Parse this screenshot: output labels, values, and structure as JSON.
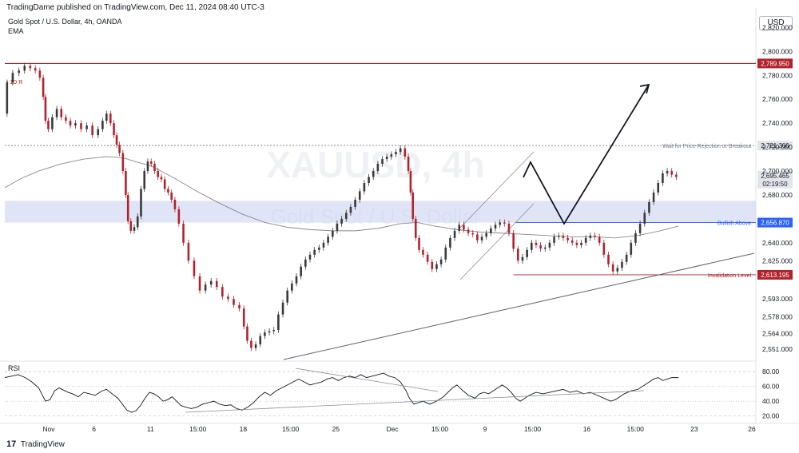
{
  "header": {
    "published": "TradingDame published on TradingView.com, Dec 11, 2024 08:40 UTC-3",
    "symbol": "Gold Spot / U.S. Dollar, 4h, OANDA",
    "indicator": "EMA",
    "currency": "USD",
    "watermark_ticker": "XAUUSD, 4h",
    "watermark_name": "Gold Spot / U.S. Dollar",
    "high_marker": "• 1D R"
  },
  "footer": {
    "brand": "TradingView",
    "brand_mark": "17"
  },
  "colors": {
    "up": "#3a3a3a",
    "down": "#b2222c",
    "resistance": "#b2222c",
    "bullish": "#2962ff",
    "zone": "#c5cff0",
    "ema": "#888888"
  },
  "chart_data": [
    {
      "type": "line",
      "panel": "price",
      "ylim": [
        2541,
        2835
      ],
      "price_ticks": [
        "2,820.000",
        "2,800.000",
        "2,780.000",
        "2,760.000",
        "2,740.000",
        "2,720.000",
        "2,700.000",
        "2,680.000",
        "2,640.000",
        "2,625.000",
        "2,593.000",
        "2,578.000",
        "2,564.000",
        "2,551.000"
      ],
      "price_tick_values": [
        2820,
        2800,
        2780,
        2760,
        2740,
        2720,
        2700,
        2680,
        2640,
        2625,
        2593,
        2578,
        2564,
        2551
      ],
      "x_labels": [
        "Nov",
        "6",
        "11",
        "15:00",
        "18",
        "15:00",
        "25",
        "Dec",
        "15:00",
        "9",
        "15:00",
        "16",
        "15:00",
        "23",
        "26"
      ],
      "x_positions": [
        0,
        40,
        90,
        132,
        172,
        214,
        254,
        304,
        346,
        386,
        428,
        476,
        519,
        571,
        622
      ],
      "levels": [
        {
          "name": "resistance",
          "value": 2789.95,
          "label": "2,789.950",
          "note": ""
        },
        {
          "name": "wait",
          "value": 2721.3,
          "label": "2,721.300",
          "note": "Wait for Price Rejection or Breakout"
        },
        {
          "name": "bullish",
          "value": 2656.87,
          "label": "2,656.870",
          "note": "Bullish Above"
        },
        {
          "name": "invalidation",
          "value": 2613.195,
          "label": "2,613.195",
          "note": "Invalidation Level"
        }
      ],
      "current_price": {
        "value": 2695.465,
        "label": "2,695.465",
        "countdown": "02:19:50"
      },
      "zone": [
        2656.87,
        2675
      ],
      "price_path": [
        [
          0,
          2748
        ],
        [
          4,
          2774
        ],
        [
          10,
          2782
        ],
        [
          15,
          2784
        ],
        [
          20,
          2788
        ],
        [
          25,
          2786
        ],
        [
          29,
          2784
        ],
        [
          33,
          2778
        ],
        [
          35,
          2762
        ],
        [
          37,
          2742
        ],
        [
          40,
          2735
        ],
        [
          44,
          2745
        ],
        [
          48,
          2752
        ],
        [
          52,
          2745
        ],
        [
          56,
          2742
        ],
        [
          60,
          2738
        ],
        [
          65,
          2740
        ],
        [
          70,
          2735
        ],
        [
          75,
          2738
        ],
        [
          80,
          2730
        ],
        [
          85,
          2735
        ],
        [
          88,
          2742
        ],
        [
          92,
          2748
        ],
        [
          95,
          2740
        ],
        [
          98,
          2730
        ],
        [
          100,
          2722
        ],
        [
          103,
          2715
        ],
        [
          106,
          2700
        ],
        [
          108,
          2680
        ],
        [
          110,
          2658
        ],
        [
          113,
          2650
        ],
        [
          116,
          2653
        ],
        [
          119,
          2662
        ],
        [
          122,
          2685
        ],
        [
          125,
          2700
        ],
        [
          128,
          2708
        ],
        [
          131,
          2706
        ],
        [
          134,
          2700
        ],
        [
          137,
          2695
        ],
        [
          140,
          2693
        ],
        [
          143,
          2685
        ],
        [
          146,
          2682
        ],
        [
          149,
          2676
        ],
        [
          152,
          2668
        ],
        [
          156,
          2656
        ],
        [
          160,
          2640
        ],
        [
          165,
          2625
        ],
        [
          170,
          2612
        ],
        [
          175,
          2600
        ],
        [
          180,
          2605
        ],
        [
          185,
          2608
        ],
        [
          190,
          2603
        ],
        [
          195,
          2595
        ],
        [
          200,
          2593
        ],
        [
          205,
          2588
        ],
        [
          210,
          2585
        ],
        [
          213,
          2570
        ],
        [
          216,
          2558
        ],
        [
          220,
          2552
        ],
        [
          224,
          2555
        ],
        [
          228,
          2562
        ],
        [
          232,
          2565
        ],
        [
          236,
          2566
        ],
        [
          240,
          2567
        ],
        [
          244,
          2580
        ],
        [
          248,
          2590
        ],
        [
          252,
          2600
        ],
        [
          256,
          2606
        ],
        [
          260,
          2612
        ],
        [
          264,
          2620
        ],
        [
          268,
          2626
        ],
        [
          272,
          2630
        ],
        [
          276,
          2634
        ],
        [
          280,
          2636
        ],
        [
          284,
          2640
        ],
        [
          288,
          2645
        ],
        [
          292,
          2650
        ],
        [
          296,
          2656
        ],
        [
          300,
          2660
        ],
        [
          304,
          2665
        ],
        [
          308,
          2670
        ],
        [
          312,
          2676
        ],
        [
          316,
          2683
        ],
        [
          320,
          2690
        ],
        [
          324,
          2695
        ],
        [
          328,
          2700
        ],
        [
          332,
          2706
        ],
        [
          336,
          2710
        ],
        [
          340,
          2712
        ],
        [
          344,
          2714
        ],
        [
          348,
          2716
        ],
        [
          352,
          2719
        ],
        [
          356,
          2712
        ],
        [
          358,
          2700
        ],
        [
          360,
          2682
        ],
        [
          362,
          2660
        ],
        [
          365,
          2644
        ],
        [
          368,
          2634
        ],
        [
          372,
          2630
        ],
        [
          376,
          2624
        ],
        [
          380,
          2618
        ],
        [
          384,
          2622
        ],
        [
          388,
          2626
        ],
        [
          392,
          2636
        ],
        [
          396,
          2644
        ],
        [
          400,
          2650
        ],
        [
          404,
          2655
        ],
        [
          408,
          2651
        ],
        [
          412,
          2648
        ],
        [
          416,
          2647
        ],
        [
          420,
          2642
        ],
        [
          424,
          2645
        ],
        [
          428,
          2648
        ],
        [
          432,
          2652
        ],
        [
          436,
          2655
        ],
        [
          440,
          2657
        ],
        [
          444,
          2656
        ],
        [
          448,
          2648
        ],
        [
          452,
          2635
        ],
        [
          456,
          2625
        ],
        [
          460,
          2628
        ],
        [
          464,
          2634
        ],
        [
          468,
          2640
        ],
        [
          472,
          2638
        ],
        [
          476,
          2635
        ],
        [
          480,
          2636
        ],
        [
          484,
          2640
        ],
        [
          488,
          2645
        ],
        [
          492,
          2646
        ],
        [
          496,
          2644
        ],
        [
          500,
          2642
        ],
        [
          504,
          2640
        ],
        [
          508,
          2638
        ],
        [
          512,
          2640
        ],
        [
          516,
          2644
        ],
        [
          520,
          2646
        ],
        [
          524,
          2645
        ],
        [
          528,
          2640
        ],
        [
          532,
          2630
        ],
        [
          536,
          2622
        ],
        [
          540,
          2616
        ],
        [
          544,
          2619
        ],
        [
          548,
          2624
        ],
        [
          552,
          2630
        ],
        [
          556,
          2640
        ],
        [
          560,
          2648
        ],
        [
          564,
          2656
        ],
        [
          568,
          2665
        ],
        [
          572,
          2674
        ],
        [
          576,
          2682
        ],
        [
          580,
          2690
        ],
        [
          584,
          2698
        ],
        [
          588,
          2700
        ],
        [
          592,
          2697
        ],
        [
          596,
          2695
        ]
      ],
      "ema_path": [
        [
          0,
          2686
        ],
        [
          15,
          2694
        ],
        [
          30,
          2700
        ],
        [
          50,
          2706
        ],
        [
          70,
          2710
        ],
        [
          90,
          2712
        ],
        [
          105,
          2711
        ],
        [
          115,
          2708
        ],
        [
          130,
          2704
        ],
        [
          150,
          2694
        ],
        [
          170,
          2683
        ],
        [
          190,
          2673
        ],
        [
          210,
          2664
        ],
        [
          230,
          2657
        ],
        [
          250,
          2653
        ],
        [
          270,
          2651
        ],
        [
          290,
          2650
        ],
        [
          310,
          2650
        ],
        [
          330,
          2652
        ],
        [
          350,
          2656
        ],
        [
          365,
          2657
        ],
        [
          380,
          2654
        ],
        [
          400,
          2651
        ],
        [
          420,
          2649
        ],
        [
          440,
          2648
        ],
        [
          460,
          2647
        ],
        [
          480,
          2646
        ],
        [
          500,
          2645
        ],
        [
          520,
          2645
        ],
        [
          540,
          2644
        ],
        [
          560,
          2646
        ],
        [
          580,
          2650
        ],
        [
          596,
          2654
        ]
      ]
    },
    {
      "type": "line",
      "panel": "oscillator",
      "name": "RSI",
      "ylim": [
        12,
        90
      ],
      "ticks": [
        "80.00",
        "60.00",
        "40.00",
        "20.00"
      ],
      "tick_values": [
        80,
        60,
        40,
        20
      ],
      "values_path": [
        [
          0,
          72
        ],
        [
          6,
          74
        ],
        [
          12,
          76
        ],
        [
          18,
          72
        ],
        [
          24,
          66
        ],
        [
          30,
          58
        ],
        [
          36,
          40
        ],
        [
          40,
          42
        ],
        [
          44,
          54
        ],
        [
          48,
          58
        ],
        [
          52,
          55
        ],
        [
          56,
          52
        ],
        [
          60,
          50
        ],
        [
          65,
          46
        ],
        [
          70,
          52
        ],
        [
          75,
          50
        ],
        [
          80,
          48
        ],
        [
          86,
          54
        ],
        [
          90,
          56
        ],
        [
          95,
          50
        ],
        [
          100,
          44
        ],
        [
          104,
          36
        ],
        [
          108,
          28
        ],
        [
          112,
          25
        ],
        [
          116,
          27
        ],
        [
          120,
          34
        ],
        [
          124,
          44
        ],
        [
          128,
          52
        ],
        [
          132,
          50
        ],
        [
          136,
          46
        ],
        [
          140,
          40
        ],
        [
          144,
          42
        ],
        [
          148,
          46
        ],
        [
          152,
          40
        ],
        [
          156,
          34
        ],
        [
          160,
          32
        ],
        [
          165,
          30
        ],
        [
          170,
          32
        ],
        [
          175,
          36
        ],
        [
          180,
          38
        ],
        [
          185,
          40
        ],
        [
          190,
          36
        ],
        [
          195,
          34
        ],
        [
          200,
          35
        ],
        [
          205,
          30
        ],
        [
          210,
          28
        ],
        [
          215,
          32
        ],
        [
          220,
          38
        ],
        [
          225,
          46
        ],
        [
          230,
          52
        ],
        [
          235,
          48
        ],
        [
          240,
          54
        ],
        [
          245,
          58
        ],
        [
          250,
          62
        ],
        [
          255,
          66
        ],
        [
          260,
          70
        ],
        [
          265,
          66
        ],
        [
          270,
          62
        ],
        [
          275,
          64
        ],
        [
          280,
          66
        ],
        [
          285,
          70
        ],
        [
          290,
          72
        ],
        [
          295,
          68
        ],
        [
          300,
          72
        ],
        [
          305,
          74
        ],
        [
          310,
          72
        ],
        [
          315,
          76
        ],
        [
          320,
          72
        ],
        [
          325,
          74
        ],
        [
          330,
          76
        ],
        [
          335,
          78
        ],
        [
          340,
          74
        ],
        [
          345,
          72
        ],
        [
          350,
          66
        ],
        [
          355,
          54
        ],
        [
          358,
          44
        ],
        [
          362,
          36
        ],
        [
          366,
          38
        ],
        [
          370,
          40
        ],
        [
          376,
          36
        ],
        [
          382,
          40
        ],
        [
          388,
          46
        ],
        [
          392,
          52
        ],
        [
          396,
          58
        ],
        [
          400,
          62
        ],
        [
          404,
          56
        ],
        [
          410,
          48
        ],
        [
          416,
          44
        ],
        [
          420,
          50
        ],
        [
          424,
          52
        ],
        [
          428,
          50
        ],
        [
          432,
          54
        ],
        [
          436,
          58
        ],
        [
          440,
          62
        ],
        [
          444,
          58
        ],
        [
          448,
          52
        ],
        [
          452,
          44
        ],
        [
          456,
          40
        ],
        [
          460,
          44
        ],
        [
          464,
          48
        ],
        [
          470,
          52
        ],
        [
          476,
          50
        ],
        [
          482,
          52
        ],
        [
          488,
          54
        ],
        [
          494,
          56
        ],
        [
          500,
          52
        ],
        [
          506,
          54
        ],
        [
          512,
          50
        ],
        [
          518,
          52
        ],
        [
          524,
          48
        ],
        [
          530,
          44
        ],
        [
          536,
          40
        ],
        [
          540,
          42
        ],
        [
          544,
          46
        ],
        [
          548,
          50
        ],
        [
          554,
          54
        ],
        [
          560,
          56
        ],
        [
          566,
          62
        ],
        [
          570,
          66
        ],
        [
          574,
          70
        ],
        [
          578,
          72
        ],
        [
          582,
          68
        ],
        [
          586,
          70
        ],
        [
          590,
          72
        ],
        [
          596,
          72
        ]
      ]
    }
  ]
}
